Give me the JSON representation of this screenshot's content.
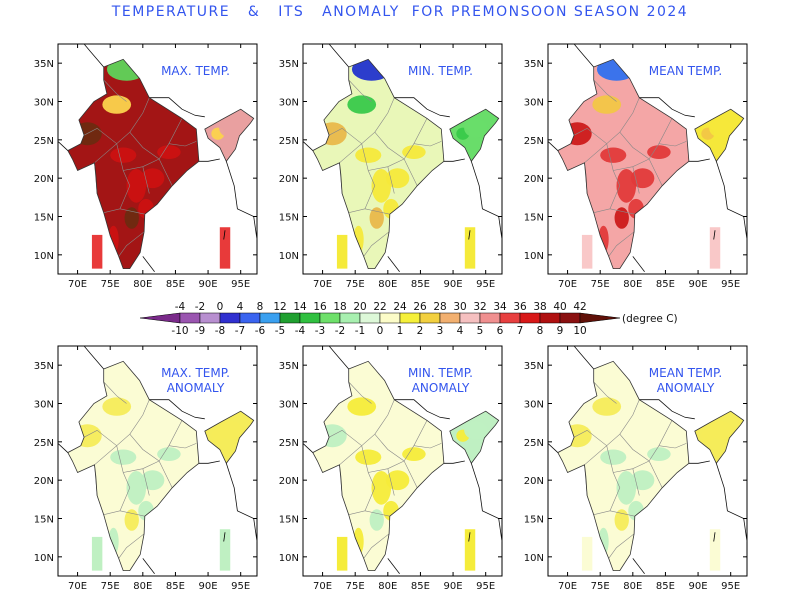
{
  "title": "TEMPERATURE   &   ITS   ANOMALY  FOR PREMONSOON SEASON 2024",
  "panels": [
    {
      "id": "max-temp",
      "title_lines": [
        "MAX. TEMP."
      ],
      "fill": "#a31515",
      "patch": "#cc1111",
      "north": "#5fd45a",
      "edge": "#fcd34d",
      "inset": "#e83a3a",
      "ne": "#e9a0a0",
      "hot": "#6e2a10"
    },
    {
      "id": "min-temp",
      "title_lines": [
        "MIN. TEMP."
      ],
      "fill": "#e9f7b8",
      "patch": "#f5e93a",
      "north": "#2233cc",
      "edge": "#39c94a",
      "inset": "#f5ea3a",
      "ne": "#69dd6a",
      "hot": "#e9b84a"
    },
    {
      "id": "mean-temp",
      "title_lines": [
        "MEAN TEMP."
      ],
      "fill": "#f4a6a6",
      "patch": "#e23a3a",
      "north": "#3070ee",
      "edge": "#f2c646",
      "inset": "#f9c8c8",
      "ne": "#f5e83a",
      "hot": "#cc1a1a"
    },
    {
      "id": "max-anom",
      "title_lines": [
        "MAX. TEMP.",
        "ANOMALY"
      ],
      "fill": "#fbfcd4",
      "patch": "#bff0c2",
      "north": "#fbfcd4",
      "edge": "#f5ec5a",
      "inset": "#bff0c2",
      "ne": "#f5ec5a",
      "hot": "#f5ec5a"
    },
    {
      "id": "min-anom",
      "title_lines": [
        "MIN. TEMP.",
        "ANOMALY"
      ],
      "fill": "#fbfcd4",
      "patch": "#f5ec3a",
      "north": "#fbfcd4",
      "edge": "#f5ec3a",
      "inset": "#f5ec3a",
      "ne": "#bff0c2",
      "hot": "#bff0c2"
    },
    {
      "id": "mean-anom",
      "title_lines": [
        "MEAN TEMP.",
        "ANOMALY"
      ],
      "fill": "#fbfcd4",
      "patch": "#bff0c2",
      "north": "#fbfcd4",
      "edge": "#f5ec5a",
      "inset": "#fbfcd4",
      "ne": "#f5ec5a",
      "hot": "#f5ec5a"
    }
  ],
  "axes": {
    "x_ticks": [
      "70E",
      "75E",
      "80E",
      "85E",
      "90E",
      "95E"
    ],
    "y_ticks": [
      "35N",
      "30N",
      "25N",
      "20N",
      "15N",
      "10N"
    ]
  },
  "legend": {
    "top_labels": [
      "-4",
      "-2",
      "0",
      "4",
      "8",
      "12",
      "14",
      "16",
      "18",
      "20",
      "22",
      "24",
      "26",
      "28",
      "30",
      "32",
      "34",
      "36",
      "38",
      "40",
      "42"
    ],
    "bottom_labels": [
      "-10",
      "-9",
      "-8",
      "-7",
      "-6",
      "-5",
      "-4",
      "-3",
      "-2",
      "-1",
      "0",
      "1",
      "2",
      "3",
      "4",
      "5",
      "6",
      "7",
      "8",
      "9",
      "10"
    ],
    "unit": "(degree C)",
    "colors": [
      "#7a2a8a",
      "#9a55b0",
      "#b88fd0",
      "#3030d0",
      "#3a64f0",
      "#3aa0f0",
      "#20a030",
      "#30c040",
      "#6ee06a",
      "#a8f0b0",
      "#ddf8d8",
      "#fcfcc8",
      "#f5f03a",
      "#f2d040",
      "#f2b070",
      "#f5c0c0",
      "#f09090",
      "#e84040",
      "#d81818",
      "#b01010",
      "#8a1010",
      "#601008"
    ]
  }
}
